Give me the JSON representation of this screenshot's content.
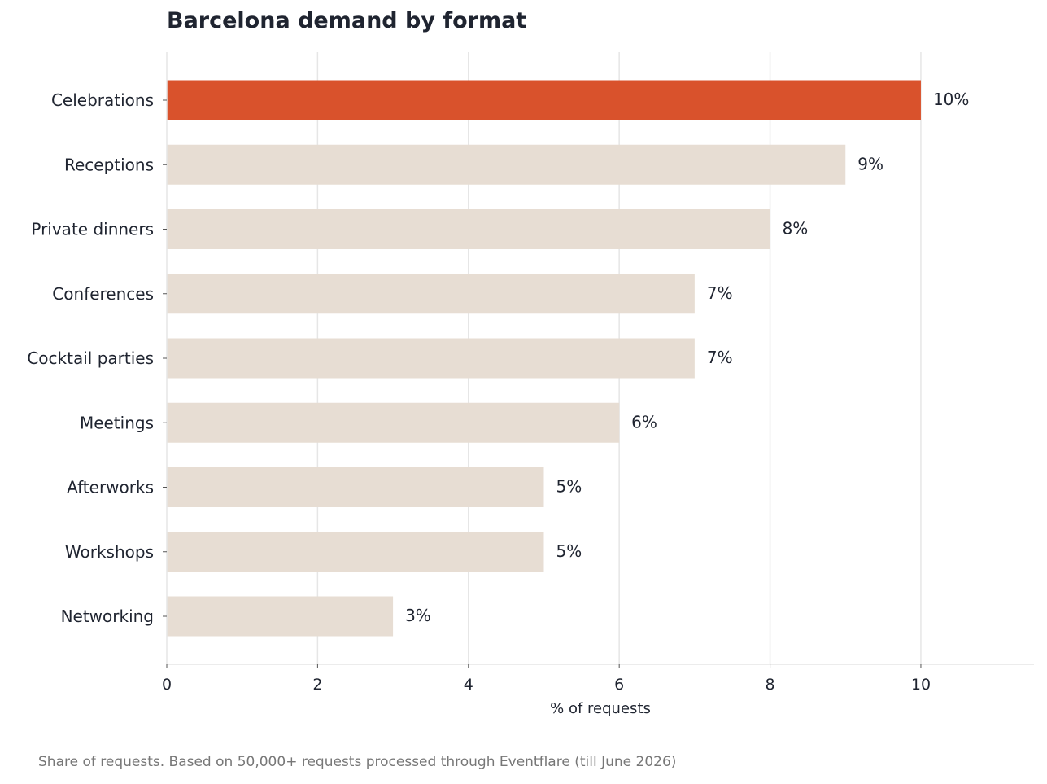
{
  "chart_data": {
    "type": "bar",
    "orientation": "horizontal",
    "title": "Barcelona demand by format",
    "xlabel": "% of requests",
    "ylabel": "",
    "caption": "Share of requests. Based on 50,000+ requests processed through Eventflare (till June 2026)",
    "categories": [
      "Celebrations",
      "Receptions",
      "Private dinners",
      "Conferences",
      "Cocktail parties",
      "Meetings",
      "Afterworks",
      "Workshops",
      "Networking"
    ],
    "values": [
      10,
      9,
      8,
      7,
      7,
      6,
      5,
      5,
      3
    ],
    "value_labels": [
      "10%",
      "9%",
      "8%",
      "7%",
      "7%",
      "6%",
      "5%",
      "5%",
      "3%"
    ],
    "xlim": [
      0,
      11.5
    ],
    "xticks": [
      0,
      2,
      4,
      6,
      8,
      10
    ],
    "xtick_labels": [
      "0",
      "2",
      "4",
      "6",
      "8",
      "10"
    ],
    "grid": "vertical",
    "legend": "none",
    "highlight_index": 0,
    "colors": {
      "highlight": "#d9522c",
      "default": "#e7ddd3",
      "grid": "#e6e6e6",
      "text": "#1f2430",
      "caption": "#777777"
    }
  }
}
